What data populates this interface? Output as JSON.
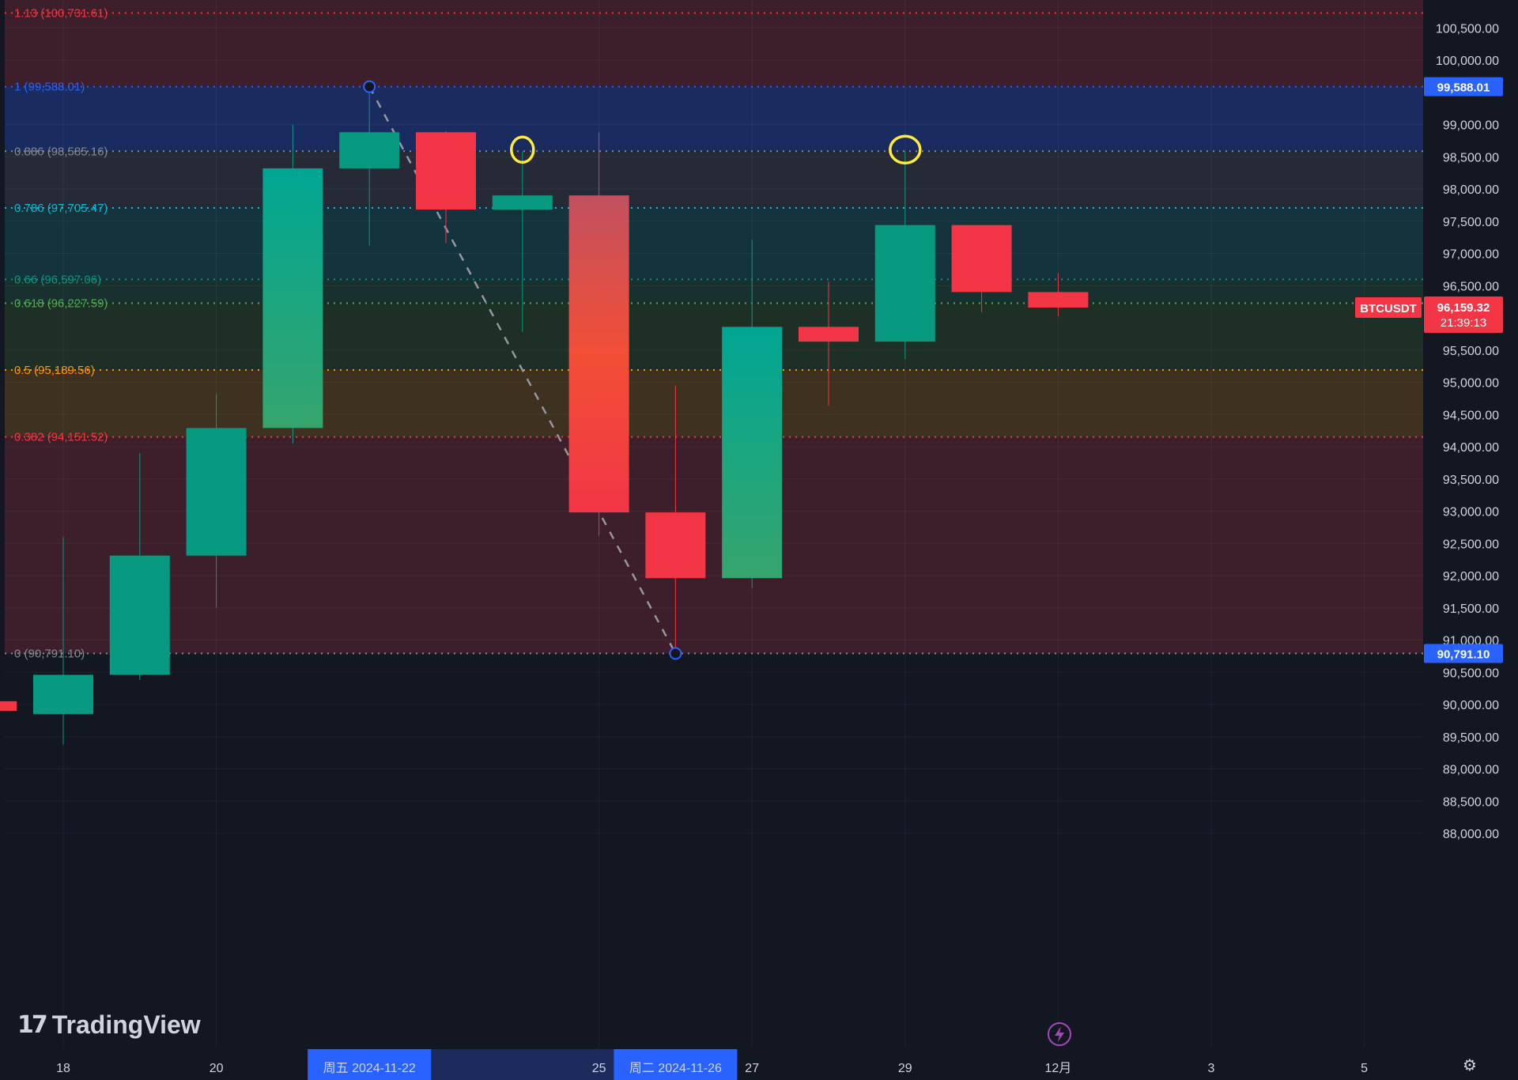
{
  "chart_data": {
    "type": "candlestick",
    "symbol": "BTCUSDT",
    "last_price": 96159.32,
    "last_price_label": "96,159.32",
    "countdown": "21:39:13",
    "colors": {
      "up": "#089981",
      "down": "#f23645",
      "background": "#131722",
      "crosshair_date_bg": "#2962ff"
    },
    "y_range": [
      87600,
      101000
    ],
    "y_ticks": [
      100500,
      100000,
      99000,
      98500,
      98000,
      97500,
      97000,
      96500,
      95500,
      95000,
      94500,
      94000,
      93500,
      93000,
      92500,
      92000,
      91500,
      91000,
      90500,
      90000,
      89500,
      89000,
      88500,
      88000
    ],
    "y_tick_labels": [
      "100,500.00",
      "100,000.00",
      "99,000.00",
      "98,500.00",
      "98,000.00",
      "97,500.00",
      "97,000.00",
      "96,500.00",
      "95,500.00",
      "95,000.00",
      "94,500.00",
      "94,000.00",
      "93,500.00",
      "93,000.00",
      "92,500.00",
      "92,000.00",
      "91,500.00",
      "91,000.00",
      "90,500.00",
      "90,000.00",
      "89,500.00",
      "89,000.00",
      "88,500.00",
      "88,000.00"
    ],
    "x_ticks": [
      {
        "day": 0,
        "label": "18"
      },
      {
        "day": 2,
        "label": "20"
      },
      {
        "day": 7,
        "label": "25"
      },
      {
        "day": 9,
        "label": "27"
      },
      {
        "day": 11,
        "label": "29"
      },
      {
        "day": 13,
        "label": "12月"
      },
      {
        "day": 15,
        "label": "3"
      },
      {
        "day": 17,
        "label": "5"
      }
    ],
    "date_highlights": [
      {
        "day": 4,
        "label": "周五 2024-11-22"
      },
      {
        "day": 8,
        "label": "周二 2024-11-26"
      }
    ],
    "candles": [
      {
        "day": -1,
        "open": 90050,
        "high": 90600,
        "low": 89800,
        "close": 89900
      },
      {
        "day": 0,
        "open": 89850,
        "high": 92600,
        "low": 89380,
        "close": 90460
      },
      {
        "day": 1,
        "open": 90460,
        "high": 93900,
        "low": 90380,
        "close": 92310
      },
      {
        "day": 2,
        "open": 92310,
        "high": 94820,
        "low": 91500,
        "close": 94290
      },
      {
        "day": 3,
        "open": 94290,
        "high": 99000,
        "low": 94050,
        "close": 98320
      },
      {
        "day": 4,
        "open": 98320,
        "high": 99588.01,
        "low": 97120,
        "close": 98880
      },
      {
        "day": 5,
        "open": 98880,
        "high": 98900,
        "low": 97160,
        "close": 97680
      },
      {
        "day": 6,
        "open": 97680,
        "high": 98585,
        "low": 95780,
        "close": 97900
      },
      {
        "day": 7,
        "open": 97900,
        "high": 98880,
        "low": 92620,
        "close": 92980
      },
      {
        "day": 8,
        "open": 92980,
        "high": 94950,
        "low": 90791.1,
        "close": 91960
      },
      {
        "day": 9,
        "open": 91960,
        "high": 97210,
        "low": 91800,
        "close": 95860
      },
      {
        "day": 10,
        "open": 95860,
        "high": 96560,
        "low": 94640,
        "close": 95630
      },
      {
        "day": 11,
        "open": 95630,
        "high": 98590,
        "low": 95360,
        "close": 97440
      },
      {
        "day": 12,
        "open": 97440,
        "high": 97440,
        "low": 96090,
        "close": 96400
      },
      {
        "day": 13,
        "open": 96400,
        "high": 96690,
        "low": 96020,
        "close": 96159.32
      }
    ],
    "fibonacci": {
      "start": {
        "day": 4,
        "price": 99588.01
      },
      "end": {
        "day": 8,
        "price": 90791.1
      },
      "levels": [
        {
          "ratio": 1.13,
          "price": 100731.61,
          "label": "1.13 (100,731.61)",
          "color": "#f23645",
          "fill": "#3c1f2b"
        },
        {
          "ratio": 1,
          "price": 99588.01,
          "label": "1 (99,588.01)",
          "color": "#2962ff",
          "fill": "#1a2b5f"
        },
        {
          "ratio": 0.886,
          "price": 98585.16,
          "label": "0.886 (98,585.16)",
          "color": "#868993",
          "fill": "#252a36"
        },
        {
          "ratio": 0.786,
          "price": 97705.47,
          "label": "0.786 (97,705.47)",
          "color": "#00bcd4",
          "fill": "#13333d"
        },
        {
          "ratio": 0.66,
          "price": 96597.06,
          "label": "0.66 (96,597.06)",
          "color": "#089981",
          "fill": "#18312f"
        },
        {
          "ratio": 0.618,
          "price": 96227.59,
          "label": "0.618 (96,227.59)",
          "color": "#4caf50",
          "fill": "#1e2f26"
        },
        {
          "ratio": 0.5,
          "price": 95189.56,
          "label": "0.5 (95,189.56)",
          "color": "#ff9800",
          "fill": "#3f3120"
        },
        {
          "ratio": 0.382,
          "price": 94151.52,
          "label": "0.382 (94,151.52)",
          "color": "#f23645",
          "fill": "#3c1f2b"
        },
        {
          "ratio": 0,
          "price": 90791.1,
          "label": "0 (90,791.10)",
          "color": "#868993",
          "fill": null
        }
      ],
      "axis_tags": [
        {
          "price": 99588.01,
          "label": "99,588.01",
          "color": "#2962ff"
        },
        {
          "price": 90791.1,
          "label": "90,791.10",
          "color": "#2962ff"
        }
      ]
    },
    "annotations": [
      {
        "type": "circle",
        "day": 6,
        "price": 98585.16,
        "color": "#ffeb3b"
      },
      {
        "type": "circle",
        "day": 11,
        "price": 98585.16,
        "color": "#ffeb3b"
      }
    ]
  },
  "watermark": {
    "logo_text": "17",
    "brand": "TradingView"
  },
  "icons": {
    "settings": "gear-icon",
    "event": "lightning-icon"
  }
}
